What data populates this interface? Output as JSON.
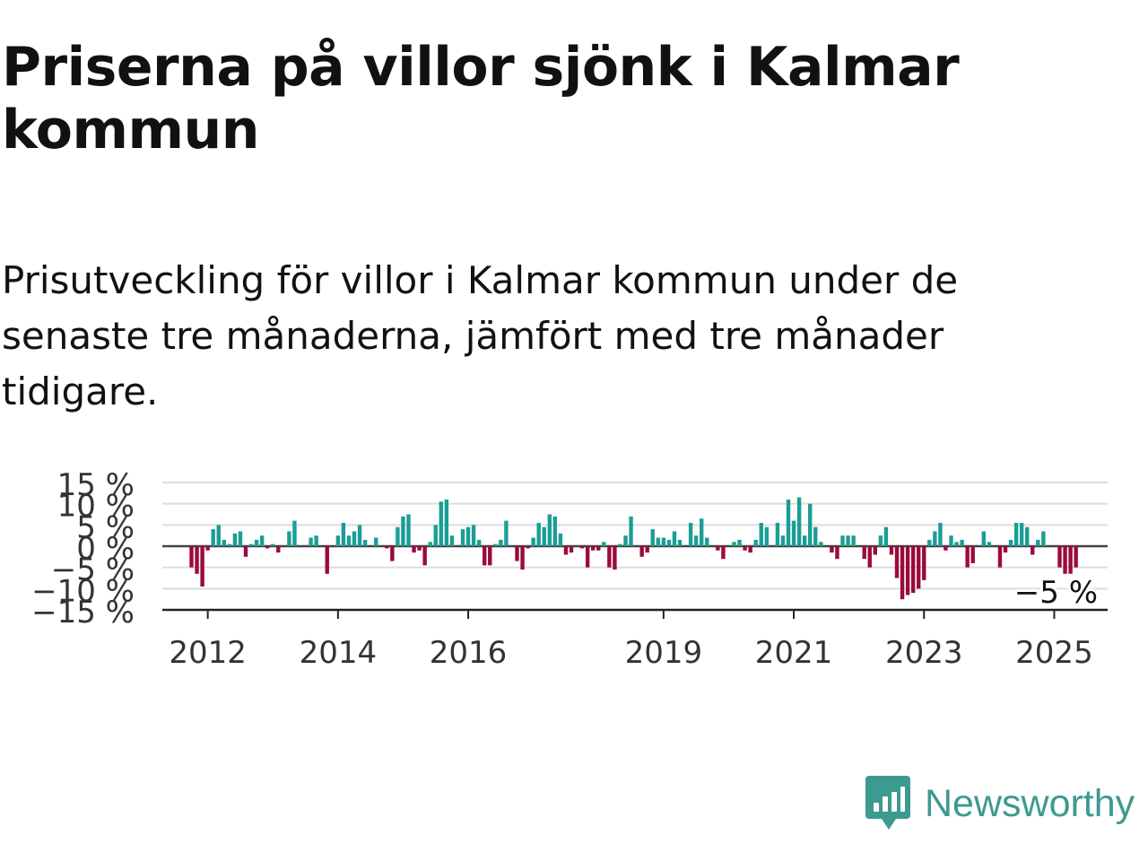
{
  "header": {
    "title": "Priserna på villor sjönk i Kalmar kommun",
    "subtitle": "Prisutveckling för villor i Kalmar kommun under de senaste tre månaderna, jämfört med tre månader tidigare."
  },
  "brand": {
    "name": "Newsworthy",
    "icon": "newsworthy-logo-icon",
    "color": "#3d9a90"
  },
  "chart_data": {
    "type": "bar",
    "x_start": "2011-10",
    "frequency": "monthly",
    "ylim": [
      -15,
      15
    ],
    "yticks": [
      15,
      10,
      5,
      0,
      -5,
      -10,
      -15
    ],
    "ytick_labels": [
      "15 %",
      "10 %",
      "5 %",
      "0 %",
      "−5 %",
      "−10 %",
      "−15 %"
    ],
    "xtick_labels": [
      {
        "label": "2012",
        "date": "2012-01"
      },
      {
        "label": "2014",
        "date": "2014-01"
      },
      {
        "label": "2016",
        "date": "2016-01"
      },
      {
        "label": "2019",
        "date": "2019-01"
      },
      {
        "label": "2021",
        "date": "2021-01"
      },
      {
        "label": "2023",
        "date": "2023-01"
      },
      {
        "label": "2025",
        "date": "2025-01"
      }
    ],
    "positive_color": "#1a9e95",
    "negative_color": "#9b0a3d",
    "values": [
      -5,
      -6.5,
      -9.5,
      -1,
      4,
      5,
      1.5,
      0.5,
      3,
      3.5,
      -2.5,
      0.5,
      1.5,
      2.5,
      -0.5,
      0.5,
      -1.5,
      0,
      3.5,
      6,
      0,
      0,
      2,
      2.5,
      0,
      -6.5,
      0,
      2.5,
      5.5,
      2.5,
      3.5,
      5,
      1.5,
      0,
      2,
      0,
      -0.5,
      -3.5,
      4.5,
      7,
      7.5,
      -1.5,
      -1,
      -4.5,
      1,
      5,
      10.5,
      11,
      2.5,
      0,
      4,
      4.5,
      5,
      1.5,
      -4.5,
      -4.5,
      0.5,
      1.5,
      6,
      0,
      -3.5,
      -5.5,
      -0.5,
      2,
      5.5,
      4.5,
      7.5,
      7,
      3,
      -2,
      -1.5,
      0,
      -0.5,
      -5,
      -1,
      -1,
      1,
      -5,
      -5.5,
      0.5,
      2.5,
      7,
      0,
      -2.5,
      -1.5,
      4,
      2,
      2,
      1.5,
      3.5,
      1.5,
      0,
      5.5,
      2.5,
      6.5,
      2,
      0,
      -1,
      -3,
      0,
      1,
      1.5,
      -1,
      -1.5,
      1.5,
      5.5,
      4.5,
      0,
      5.5,
      2.5,
      11,
      6,
      11.5,
      2.5,
      10,
      4.5,
      1,
      0,
      -1.5,
      -3,
      2.5,
      2.5,
      2.5,
      0,
      -3,
      -5,
      -2,
      2.5,
      4.5,
      -2,
      -7.5,
      -12.5,
      -11.5,
      -11,
      -10,
      -8,
      1.5,
      3.5,
      5.5,
      -1,
      2.5,
      1,
      1.5,
      -5,
      -4,
      0,
      3.5,
      1,
      0,
      -5,
      -1.5,
      1.5,
      5.5,
      5.5,
      4.5,
      -2,
      1.5,
      3.5,
      0,
      0,
      -5,
      -6.5,
      -6.5,
      -5
    ],
    "annotation": {
      "label": "−5 %",
      "value": -5,
      "position": "last-bar"
    }
  }
}
